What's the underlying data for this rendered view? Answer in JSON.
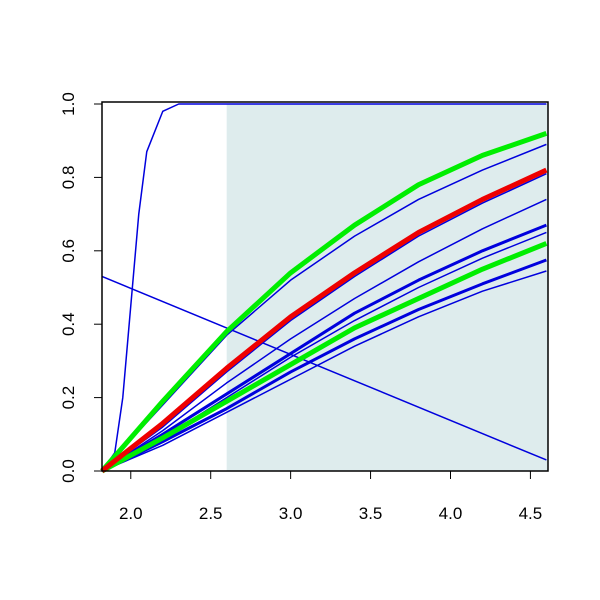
{
  "chart_data": {
    "type": "line",
    "x": [
      1.82,
      2.2,
      2.6,
      3.0,
      3.4,
      3.8,
      4.2,
      4.6
    ],
    "xlim": [
      1.82,
      4.61
    ],
    "ylim": [
      0,
      1.0
    ],
    "xticks": [
      {
        "value": 2,
        "label": "2.0"
      },
      2.5,
      {
        "value": 3,
        "label": "3.0"
      },
      3.5,
      {
        "value": 4,
        "label": "4.0"
      },
      4.5
    ],
    "yticks": [
      {
        "value": 0,
        "label": "0.0"
      },
      0.2,
      0.4,
      0.6,
      0.8,
      {
        "value": 1,
        "label": "1.0"
      }
    ],
    "shaded_region": {
      "x": [
        2.6,
        4.61
      ],
      "color": "#deeced"
    },
    "series": [
      {
        "color": "#0000dd",
        "width": 1.5,
        "x": [
          1.82,
          4.6
        ],
        "values": [
          0.53,
          0.03
        ]
      },
      {
        "color": "#0000dd",
        "width": 1.5,
        "x": [
          1.82,
          1.9,
          1.95,
          2.0,
          2.05,
          2.1,
          2.2,
          2.3,
          2.5,
          4.6
        ],
        "values": [
          0,
          0.05,
          0.2,
          0.45,
          0.7,
          0.87,
          0.98,
          1.0,
          1.0,
          1.0
        ]
      },
      {
        "color": "#0000dd",
        "width": 1.5,
        "values": [
          0,
          0.18,
          0.37,
          0.52,
          0.64,
          0.74,
          0.82,
          0.89
        ]
      },
      {
        "color": "#0000dd",
        "width": 1.5,
        "values": [
          0,
          0.12,
          0.27,
          0.41,
          0.53,
          0.64,
          0.73,
          0.81
        ]
      },
      {
        "color": "#0000dd",
        "width": 1.5,
        "values": [
          0,
          0.11,
          0.24,
          0.36,
          0.47,
          0.57,
          0.66,
          0.74
        ]
      },
      {
        "color": "#0000dd",
        "width": 3,
        "values": [
          0,
          0.1,
          0.21,
          0.32,
          0.43,
          0.52,
          0.6,
          0.67
        ]
      },
      {
        "color": "#0000dd",
        "width": 1.5,
        "values": [
          0,
          0.09,
          0.2,
          0.31,
          0.41,
          0.5,
          0.58,
          0.65
        ]
      },
      {
        "color": "#0000dd",
        "width": 3,
        "values": [
          0,
          0.08,
          0.17,
          0.27,
          0.36,
          0.44,
          0.51,
          0.575
        ]
      },
      {
        "color": "#0000dd",
        "width": 1.5,
        "values": [
          0,
          0.07,
          0.16,
          0.25,
          0.34,
          0.42,
          0.49,
          0.545
        ]
      },
      {
        "color": "#00ee00",
        "width": 5,
        "values": [
          0,
          0.09,
          0.19,
          0.29,
          0.39,
          0.47,
          0.55,
          0.62
        ]
      },
      {
        "color": "#00ee00",
        "width": 5,
        "values": [
          0,
          0.19,
          0.38,
          0.54,
          0.67,
          0.78,
          0.86,
          0.92
        ]
      },
      {
        "color": "#ee0000",
        "width": 5,
        "values": [
          0,
          0.13,
          0.28,
          0.42,
          0.54,
          0.65,
          0.74,
          0.82
        ]
      }
    ]
  }
}
